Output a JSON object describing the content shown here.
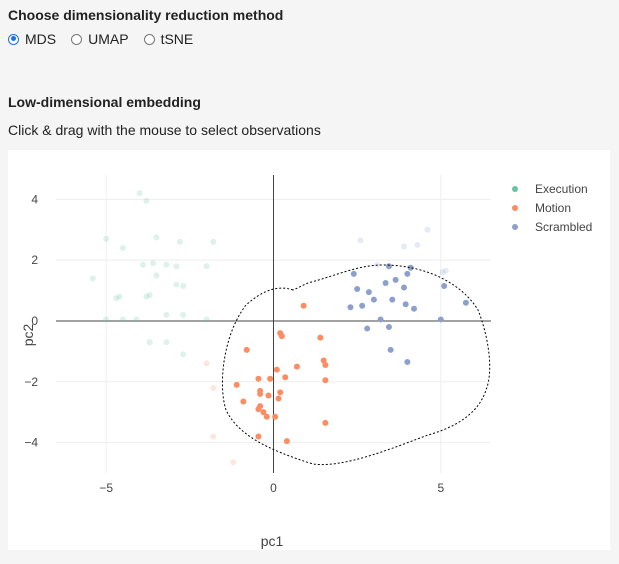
{
  "method": {
    "title": "Choose dimensionality reduction method",
    "options": [
      "MDS",
      "UMAP",
      "tSNE"
    ],
    "selected": "MDS"
  },
  "embedding": {
    "title": "Low-dimensional embedding",
    "instructions": "Click & drag with the mouse to select observations"
  },
  "chart_data": {
    "type": "scatter",
    "xlabel": "pc1",
    "ylabel": "pc2",
    "xlim": [
      -6.5,
      6.5
    ],
    "ylim": [
      -5.0,
      4.8
    ],
    "xticks": [
      -5,
      0,
      5
    ],
    "yticks": [
      -4,
      -2,
      0,
      2,
      4
    ],
    "grid": true,
    "legend_position": "top-right",
    "series": [
      {
        "name": "Execution",
        "color": "#66c2a5",
        "points": [
          [
            -4.0,
            4.2
          ],
          [
            -3.8,
            3.95
          ],
          [
            -5.0,
            2.7
          ],
          [
            -4.5,
            2.4
          ],
          [
            -3.5,
            2.75
          ],
          [
            -2.8,
            2.6
          ],
          [
            -1.8,
            2.6
          ],
          [
            -3.9,
            1.85
          ],
          [
            -3.6,
            1.9
          ],
          [
            -3.2,
            1.85
          ],
          [
            -2.9,
            1.8
          ],
          [
            -2.0,
            1.8
          ],
          [
            -5.4,
            1.4
          ],
          [
            -3.5,
            1.5
          ],
          [
            -3.7,
            0.85
          ],
          [
            -4.6,
            0.8
          ],
          [
            -4.7,
            0.75
          ],
          [
            -3.8,
            0.8
          ],
          [
            -2.9,
            1.2
          ],
          [
            -2.7,
            1.15
          ],
          [
            -5.0,
            0.05
          ],
          [
            -4.5,
            0.05
          ],
          [
            -4.1,
            0.05
          ],
          [
            -3.2,
            0.2
          ],
          [
            -2.7,
            0.2
          ],
          [
            -2.0,
            0.05
          ],
          [
            -3.7,
            -0.7
          ],
          [
            -3.2,
            -0.7
          ],
          [
            -2.7,
            -1.1
          ]
        ]
      },
      {
        "name": "Motion",
        "color": "#fc8d62",
        "points": [
          [
            0.9,
            0.5
          ],
          [
            0.2,
            -0.4
          ],
          [
            0.25,
            -0.5
          ],
          [
            1.4,
            -0.55
          ],
          [
            -0.8,
            -0.95
          ],
          [
            0.7,
            -1.5
          ],
          [
            1.5,
            -1.3
          ],
          [
            1.55,
            -1.45
          ],
          [
            0.1,
            -1.6
          ],
          [
            -1.1,
            -2.1
          ],
          [
            -0.45,
            -1.9
          ],
          [
            -0.1,
            -1.9
          ],
          [
            0.35,
            -1.85
          ],
          [
            1.55,
            -1.95
          ],
          [
            -0.4,
            -2.3
          ],
          [
            -0.4,
            -2.4
          ],
          [
            -0.15,
            -2.45
          ],
          [
            0.2,
            -2.35
          ],
          [
            0.15,
            -2.55
          ],
          [
            -0.9,
            -2.65
          ],
          [
            -0.4,
            -2.8
          ],
          [
            -0.45,
            -2.9
          ],
          [
            -0.3,
            -3.0
          ],
          [
            -0.2,
            -3.15
          ],
          [
            0.05,
            -3.15
          ],
          [
            1.55,
            -3.35
          ],
          [
            -2.0,
            -1.4
          ],
          [
            -1.8,
            -2.2
          ],
          [
            -1.8,
            -3.8
          ],
          [
            -0.45,
            -3.8
          ],
          [
            0.4,
            -3.95
          ],
          [
            -1.2,
            -4.65
          ]
        ]
      },
      {
        "name": "Scrambled",
        "color": "#8da0cb",
        "points": [
          [
            2.6,
            2.65
          ],
          [
            4.6,
            3.0
          ],
          [
            3.9,
            2.45
          ],
          [
            4.3,
            2.5
          ],
          [
            3.1,
            1.85
          ],
          [
            3.45,
            1.8
          ],
          [
            4.1,
            1.75
          ],
          [
            2.4,
            1.55
          ],
          [
            4.0,
            1.55
          ],
          [
            5.05,
            1.6
          ],
          [
            5.15,
            1.65
          ],
          [
            3.65,
            1.35
          ],
          [
            3.35,
            1.25
          ],
          [
            2.5,
            1.05
          ],
          [
            3.9,
            1.1
          ],
          [
            2.85,
            0.95
          ],
          [
            3.0,
            0.7
          ],
          [
            3.55,
            0.7
          ],
          [
            5.1,
            1.15
          ],
          [
            2.3,
            0.45
          ],
          [
            2.65,
            0.5
          ],
          [
            3.95,
            0.55
          ],
          [
            4.2,
            0.4
          ],
          [
            5.75,
            0.6
          ],
          [
            3.2,
            0.05
          ],
          [
            3.45,
            -0.2
          ],
          [
            2.8,
            -0.25
          ],
          [
            5.0,
            0.05
          ],
          [
            3.5,
            -0.95
          ],
          [
            4.0,
            -1.35
          ]
        ]
      }
    ],
    "lasso_visible": true
  }
}
